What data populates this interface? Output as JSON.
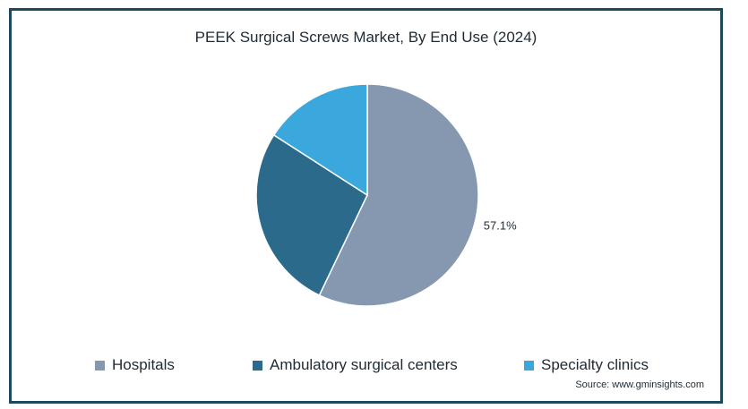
{
  "chart_data": {
    "type": "pie",
    "title": "PEEK Surgical Screws Market, By End Use (2024)",
    "slices": [
      {
        "name": "Hospitals",
        "value": 57.1,
        "label": "57.1%",
        "color": "#8697b0"
      },
      {
        "name": "Ambulatory surgical centers",
        "value": 27.0,
        "label": "",
        "color": "#2b6a8a"
      },
      {
        "name": "Specialty clinics",
        "value": 15.9,
        "label": "",
        "color": "#3aa8dc"
      }
    ],
    "legend_position": "bottom"
  },
  "source": "Source: www.gminsights.com"
}
